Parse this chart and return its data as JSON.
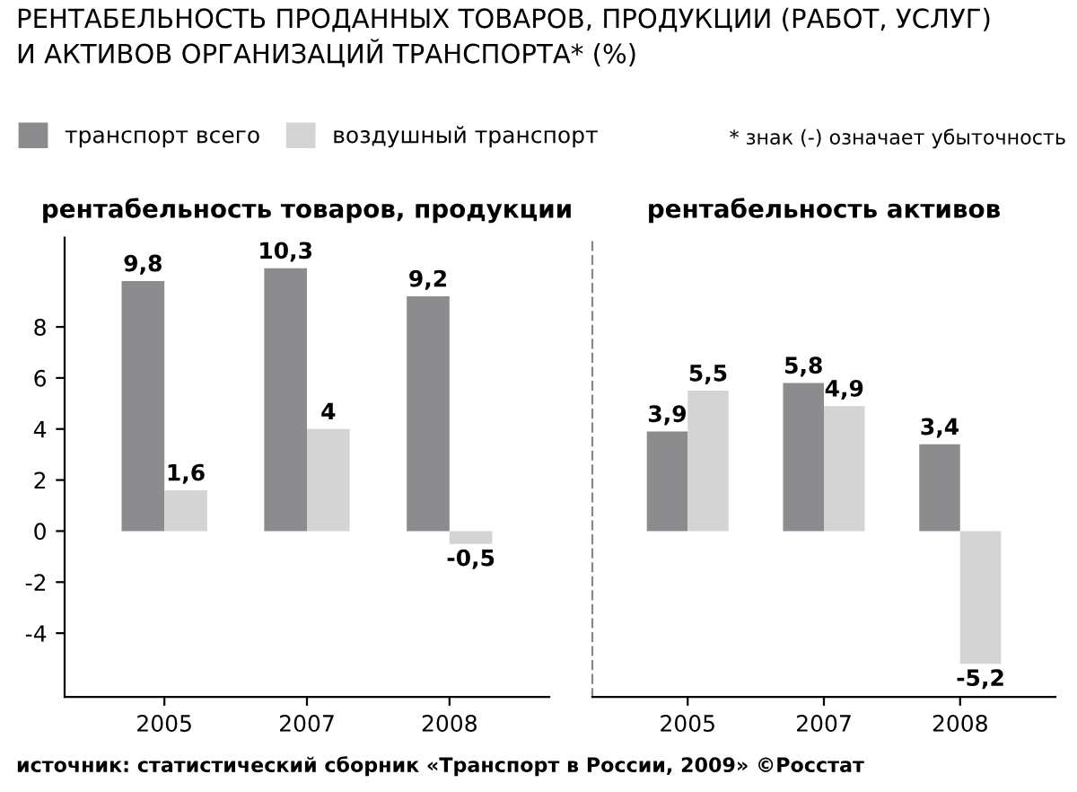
{
  "chart_data": [
    {
      "type": "bar",
      "title": "рентабельность товаров, продукции",
      "categories": [
        "2005",
        "2007",
        "2008"
      ],
      "series": [
        {
          "name": "транспорт всего",
          "color": "#8c8c8e",
          "values": [
            9.8,
            10.3,
            9.2
          ],
          "value_labels": [
            "9,8",
            "10,3",
            "9,2"
          ]
        },
        {
          "name": "воздушный транспорт",
          "color": "#d4d4d4",
          "values": [
            1.6,
            4,
            -0.5
          ],
          "value_labels": [
            "1,6",
            "4",
            "-0,5"
          ]
        }
      ],
      "ylim": [
        -6.5,
        11.5
      ],
      "yticks": [
        -4,
        -2,
        0,
        2,
        4,
        6,
        8
      ],
      "legend": "top left",
      "grid": false
    },
    {
      "type": "bar",
      "title": "рентабельность активов",
      "categories": [
        "2005",
        "2007",
        "2008"
      ],
      "series": [
        {
          "color": "#8c8c8e",
          "values": [
            3.9,
            5.8,
            3.4
          ],
          "value_labels": [
            "3,9",
            "5,8",
            "3,4"
          ]
        },
        {
          "color": "#d4d4d4",
          "values": [
            5.5,
            4.9,
            -5.2
          ],
          "value_labels": [
            "5,5",
            "4,9",
            "-5,2"
          ]
        }
      ],
      "ylim": [
        -6.5,
        11.5
      ],
      "yticks": [
        -4,
        -2,
        0,
        2,
        4,
        6,
        8
      ],
      "tick_labels": "x",
      "grid": false,
      "annotations": [
        "РЕНТАБЕЛЬНОСТЬ ПРОДАННЫХ ТОВАРОВ, ПРОДУКЦИИ (РАБОТ, УСЛУГ)\nИ АКТИВОВ ОРГАНИЗАЦИЙ ТРАНСПОРТА* (%)",
        "* знак (-) означает убыточность",
        "источник: статистический сборник «Транспорт в России, 2009» ©Росстат"
      ]
    }
  ]
}
